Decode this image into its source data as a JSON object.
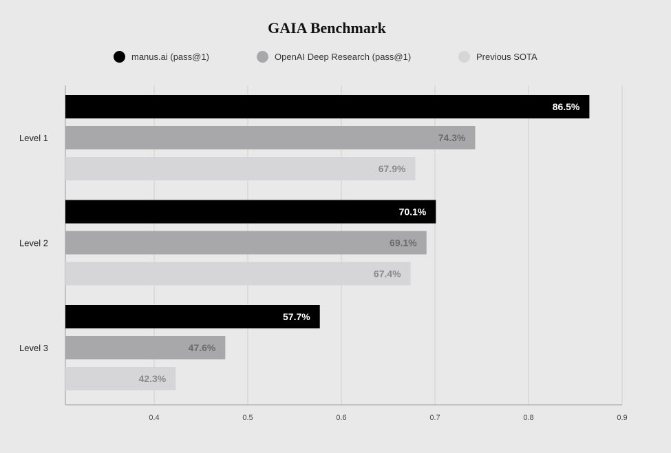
{
  "chart_data": {
    "type": "bar",
    "orientation": "horizontal",
    "title": "GAIA Benchmark",
    "xlabel": "",
    "ylabel": "",
    "categories": [
      "Level 1",
      "Level 2",
      "Level 3"
    ],
    "series": [
      {
        "name": "manus.ai (pass@1)",
        "values": [
          0.865,
          0.701,
          0.577
        ],
        "labels": [
          "86.5%",
          "70.1%",
          "57.7%"
        ],
        "color": "#000000",
        "label_color": "#ffffff"
      },
      {
        "name": "OpenAI Deep Research (pass@1)",
        "values": [
          0.743,
          0.691,
          0.476
        ],
        "labels": [
          "74.3%",
          "69.1%",
          "47.6%"
        ],
        "color": "#a8a8aa",
        "label_color": "#6b6b6d"
      },
      {
        "name": "Previous SOTA",
        "values": [
          0.679,
          0.674,
          0.423
        ],
        "labels": [
          "67.9%",
          "67.4%",
          "42.3%"
        ],
        "color": "#d6d6d8",
        "label_color": "#8a8a8c"
      }
    ],
    "xlim": [
      0.305,
      0.9
    ],
    "xticks": [
      0.4,
      0.5,
      0.6,
      0.7,
      0.8,
      0.9
    ],
    "xtick_labels": [
      "0.4",
      "0.5",
      "0.6",
      "0.7",
      "0.8",
      "0.9"
    ],
    "grid": true,
    "legend_position": "top"
  }
}
